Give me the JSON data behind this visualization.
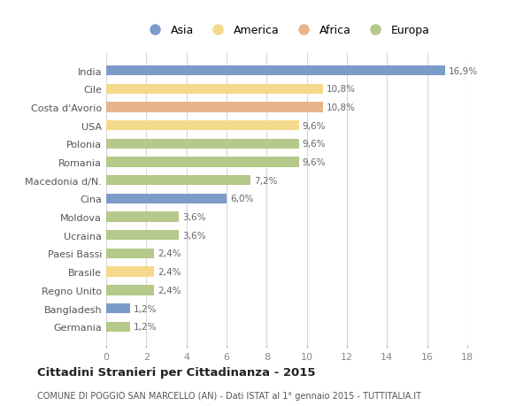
{
  "categories": [
    "India",
    "Cile",
    "Costa d'Avorio",
    "USA",
    "Polonia",
    "Romania",
    "Macedonia d/N.",
    "Cina",
    "Moldova",
    "Ucraina",
    "Paesi Bassi",
    "Brasile",
    "Regno Unito",
    "Bangladesh",
    "Germania"
  ],
  "values": [
    16.9,
    10.8,
    10.8,
    9.6,
    9.6,
    9.6,
    7.2,
    6.0,
    3.6,
    3.6,
    2.4,
    2.4,
    2.4,
    1.2,
    1.2
  ],
  "labels": [
    "16,9%",
    "10,8%",
    "10,8%",
    "9,6%",
    "9,6%",
    "9,6%",
    "7,2%",
    "6,0%",
    "3,6%",
    "3,6%",
    "2,4%",
    "2,4%",
    "2,4%",
    "1,2%",
    "1,2%"
  ],
  "colors": [
    "#7b9cc9",
    "#f5d98a",
    "#e8b48a",
    "#f5d98a",
    "#b5c98a",
    "#b5c98a",
    "#b5c98a",
    "#7b9cc9",
    "#b5c98a",
    "#b5c98a",
    "#b5c98a",
    "#f5d98a",
    "#b5c98a",
    "#7b9cc9",
    "#b5c98a"
  ],
  "legend_labels": [
    "Asia",
    "America",
    "Africa",
    "Europa"
  ],
  "legend_colors": [
    "#7b9cc9",
    "#f5d98a",
    "#e8b48a",
    "#b5c98a"
  ],
  "title": "Cittadini Stranieri per Cittadinanza - 2015",
  "subtitle": "COMUNE DI POGGIO SAN MARCELLO (AN) - Dati ISTAT al 1° gennaio 2015 - TUTTITALIA.IT",
  "xlim": [
    0,
    18
  ],
  "xticks": [
    0,
    2,
    4,
    6,
    8,
    10,
    12,
    14,
    16,
    18
  ],
  "background_color": "#ffffff",
  "grid_color": "#d8d8d8"
}
